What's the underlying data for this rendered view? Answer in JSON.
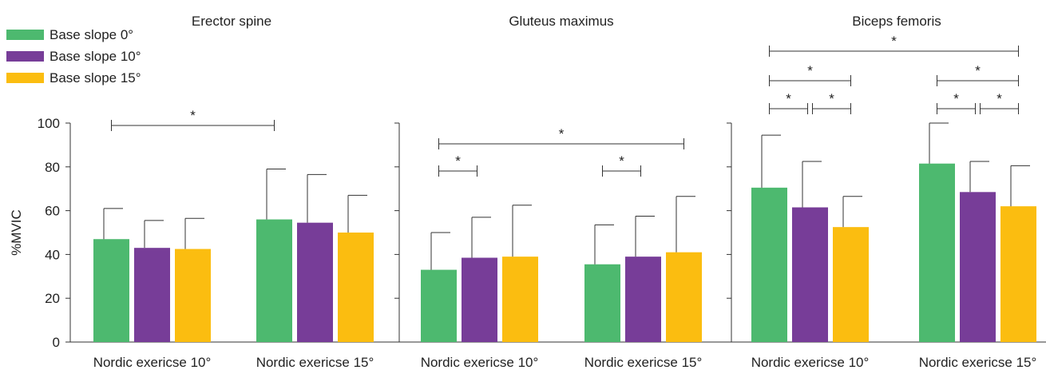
{
  "chart_data": {
    "type": "bar",
    "ylabel": "%MVIC",
    "ylim": [
      0,
      100
    ],
    "yticks": [
      0,
      20,
      40,
      60,
      80,
      100
    ],
    "grid": false,
    "legend_position": "top-left",
    "categories": [
      "Nordic exericse 10°",
      "Nordic exericse 15°"
    ],
    "series_names": [
      "Base slope 0°",
      "Base slope 10°",
      "Base slope 15°"
    ],
    "colors": [
      "#4db96f",
      "#773d98",
      "#fbbd10"
    ],
    "panels": [
      {
        "title": "Erector spine",
        "means": [
          [
            47,
            43,
            42.5
          ],
          [
            56,
            54.5,
            50
          ]
        ],
        "sd": [
          [
            14,
            12.5,
            14
          ],
          [
            23,
            22,
            17
          ]
        ],
        "significance": [
          {
            "from": [
              0,
              0
            ],
            "to": [
              1,
              0
            ],
            "label": "*"
          }
        ]
      },
      {
        "title": "Gluteus maximus",
        "means": [
          [
            33,
            38.5,
            39
          ],
          [
            35.5,
            39,
            41
          ]
        ],
        "sd": [
          [
            17,
            18.5,
            23.5
          ],
          [
            18,
            18.5,
            25.5
          ]
        ],
        "significance": [
          {
            "from": [
              0,
              0
            ],
            "to": [
              1,
              2
            ],
            "label": "*"
          },
          {
            "from": [
              0,
              0
            ],
            "to": [
              0,
              1
            ],
            "label": "*"
          },
          {
            "from": [
              1,
              0
            ],
            "to": [
              1,
              1
            ],
            "label": "*"
          }
        ]
      },
      {
        "title": "Biceps femoris",
        "means": [
          [
            70.5,
            61.5,
            52.5
          ],
          [
            81.5,
            68.5,
            62
          ]
        ],
        "sd": [
          [
            24,
            21,
            14
          ],
          [
            18.5,
            14,
            18.5
          ]
        ],
        "significance": [
          {
            "from": [
              0,
              0
            ],
            "to": [
              1,
              2
            ],
            "label": "*"
          },
          {
            "from": [
              0,
              0
            ],
            "to": [
              0,
              2
            ],
            "label": "*"
          },
          {
            "from": [
              1,
              0
            ],
            "to": [
              1,
              2
            ],
            "label": "*"
          },
          {
            "from": [
              0,
              0
            ],
            "to": [
              0,
              1
            ],
            "label": "*"
          },
          {
            "from": [
              0,
              1
            ],
            "to": [
              0,
              2
            ],
            "label": "*"
          },
          {
            "from": [
              1,
              0
            ],
            "to": [
              1,
              1
            ],
            "label": "*"
          },
          {
            "from": [
              1,
              1
            ],
            "to": [
              1,
              2
            ],
            "label": "*"
          }
        ]
      }
    ]
  }
}
